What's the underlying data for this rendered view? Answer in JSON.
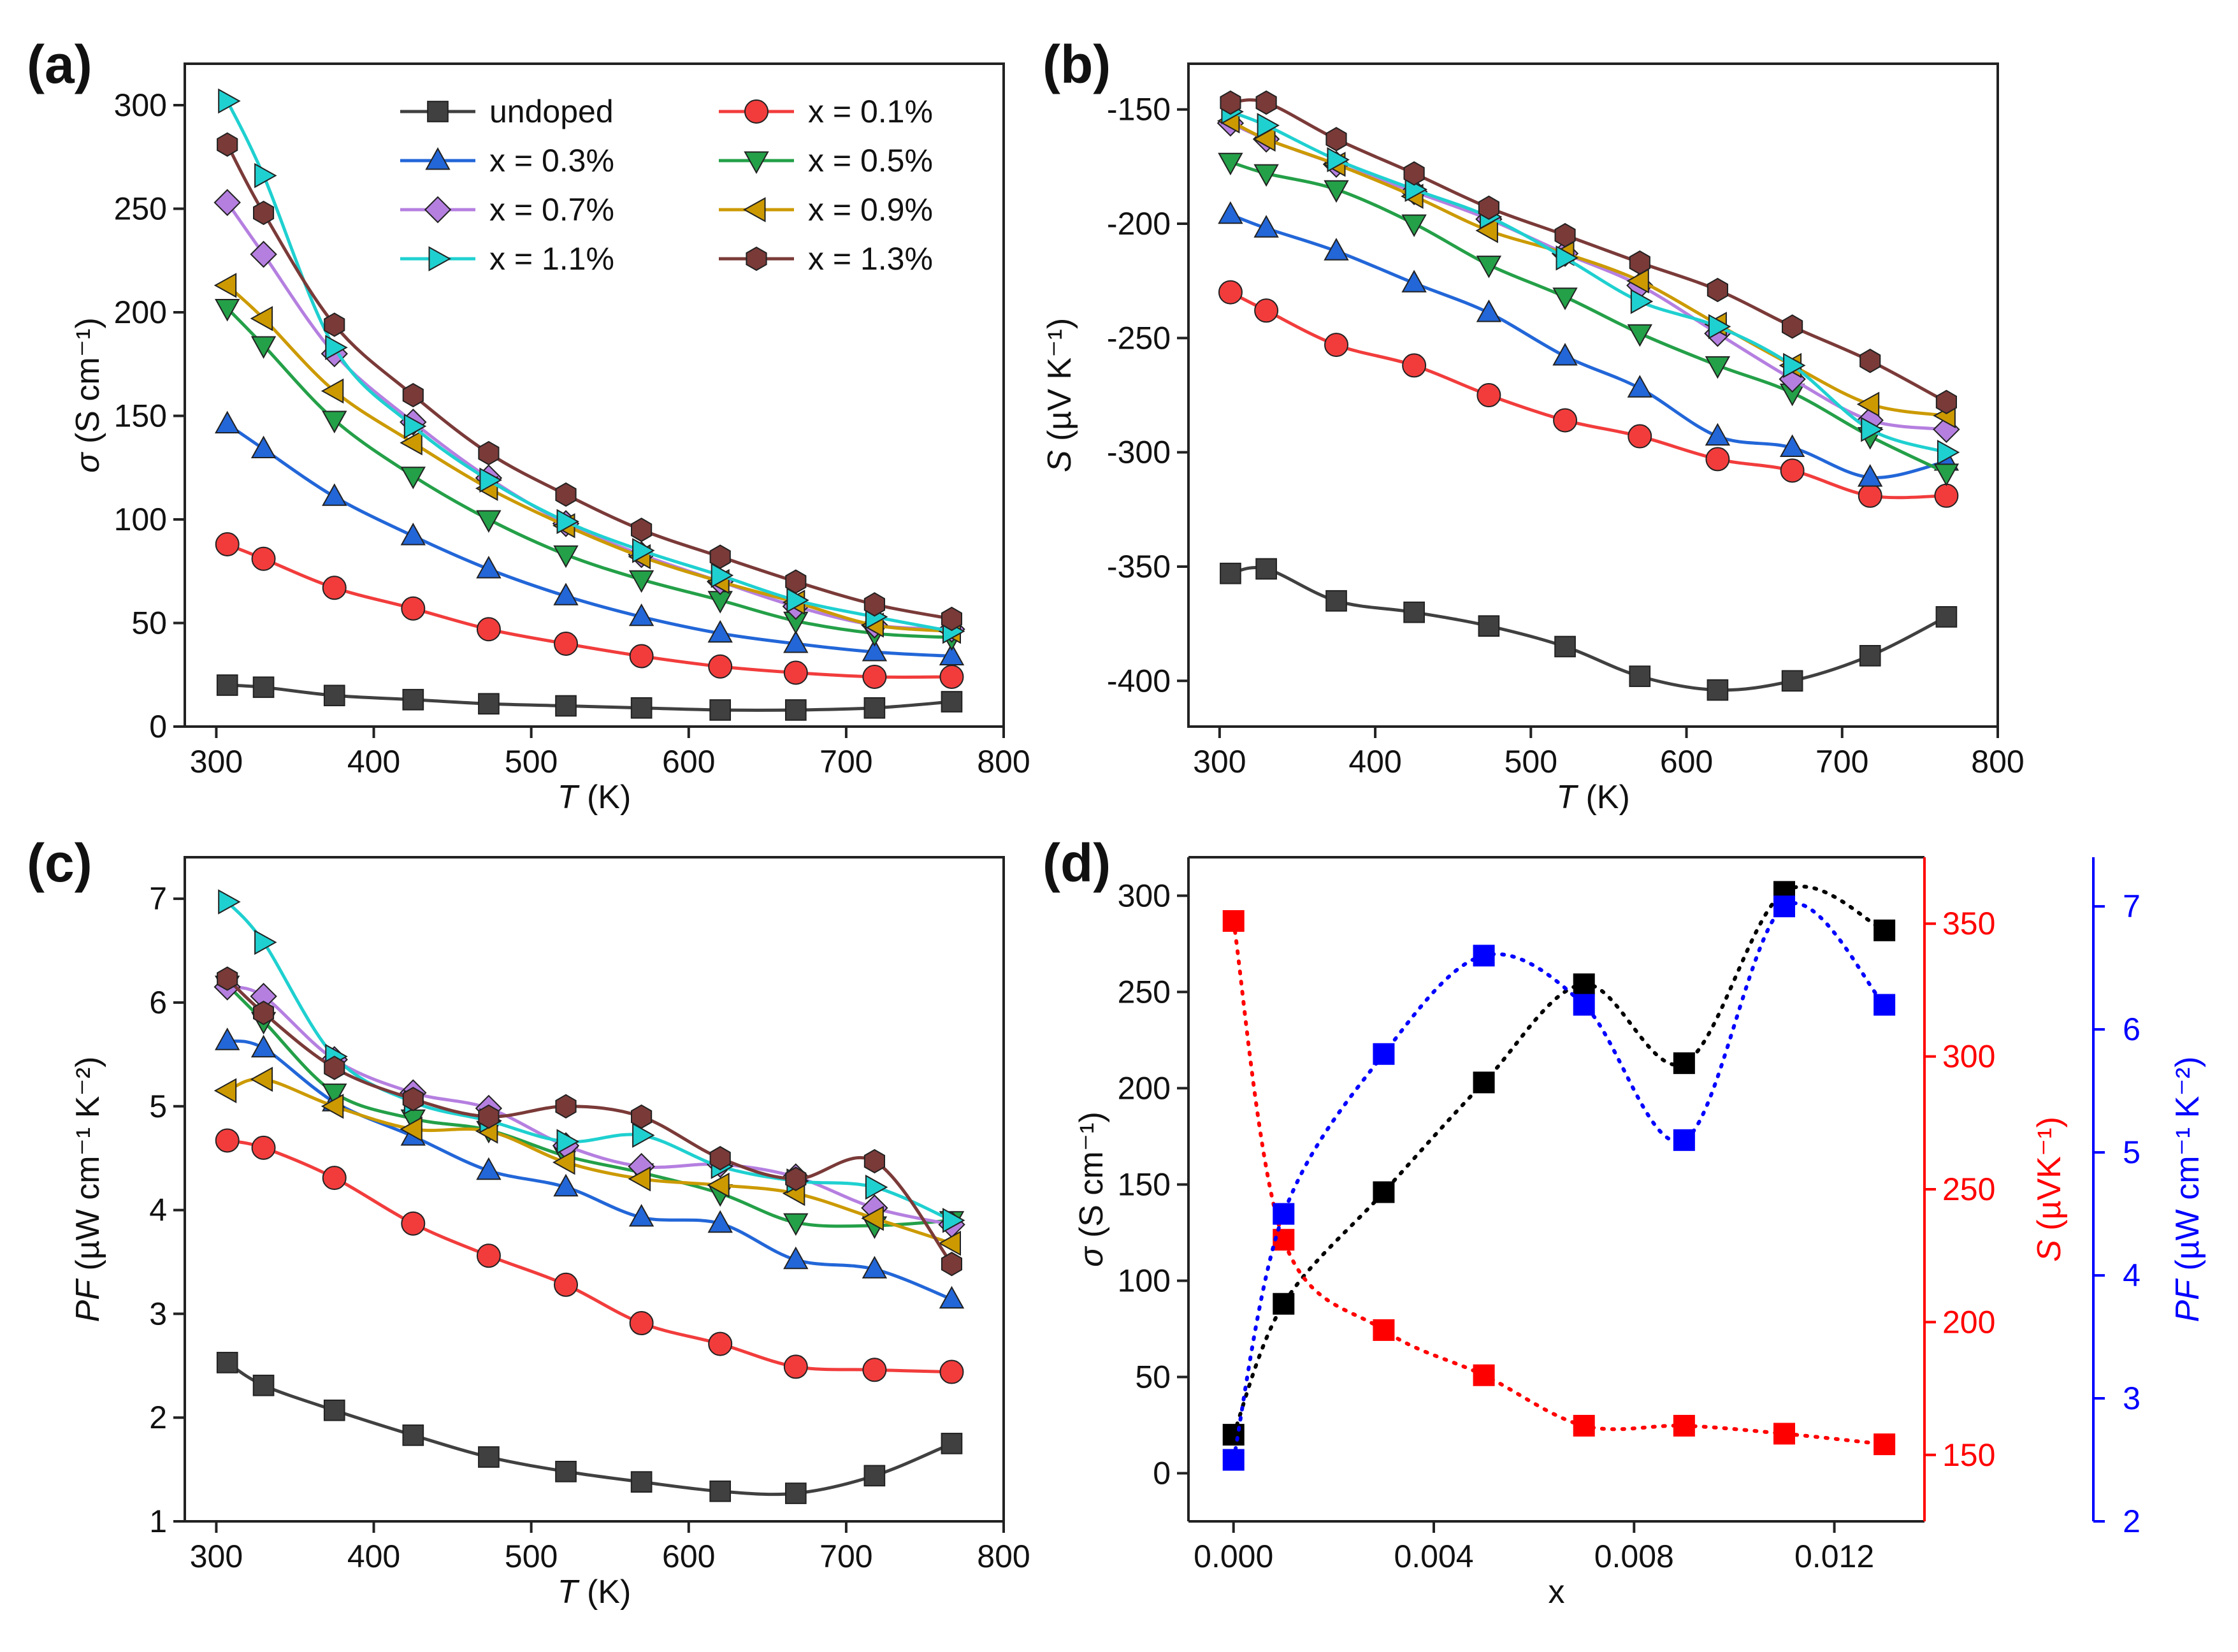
{
  "chart_data": [
    {
      "panel": "(a)",
      "type": "line",
      "xlabel_italic": "T",
      "xlabel_rest": " (K)",
      "ylabel_italic": "σ",
      "ylabel_rest": " (S cm⁻¹)",
      "xlim": [
        280,
        800
      ],
      "ylim": [
        0,
        320
      ],
      "xticks": [
        300,
        400,
        500,
        600,
        700,
        800
      ],
      "yticks": [
        0,
        50,
        100,
        150,
        200,
        250,
        300
      ],
      "x": [
        307,
        330,
        375,
        425,
        473,
        522,
        570,
        620,
        668,
        718,
        767
      ],
      "series": [
        {
          "name": "undoped",
          "color": "#404040",
          "marker": "square",
          "values": [
            20,
            19,
            15,
            13,
            11,
            10,
            9,
            8,
            8,
            9,
            12
          ]
        },
        {
          "name": "x = 0.1%",
          "color": "#f23c3c",
          "marker": "circle",
          "values": [
            88,
            81,
            67,
            57,
            47,
            40,
            34,
            29,
            26,
            24,
            24
          ]
        },
        {
          "name": "x = 0.3%",
          "color": "#2266d8",
          "marker": "triangle-up",
          "values": [
            146,
            134,
            111,
            92,
            76,
            63,
            53,
            45,
            40,
            36,
            34
          ]
        },
        {
          "name": "x = 0.5%",
          "color": "#24a048",
          "marker": "triangle-down",
          "values": [
            202,
            184,
            148,
            121,
            100,
            83,
            71,
            61,
            51,
            45,
            43
          ]
        },
        {
          "name": "x = 0.7%",
          "color": "#b57fe0",
          "marker": "diamond",
          "values": [
            253,
            228,
            180,
            147,
            120,
            98,
            83,
            70,
            58,
            49,
            47
          ]
        },
        {
          "name": "x = 0.9%",
          "color": "#cc9a00",
          "marker": "triangle-left",
          "values": [
            213,
            197,
            162,
            137,
            115,
            97,
            82,
            70,
            60,
            49,
            46
          ]
        },
        {
          "name": "x = 1.1%",
          "color": "#1fd0d0",
          "marker": "triangle-right",
          "values": [
            302,
            266,
            183,
            145,
            119,
            99,
            85,
            73,
            61,
            53,
            46
          ]
        },
        {
          "name": "x = 1.3%",
          "color": "#7a3a38",
          "marker": "hexagon",
          "values": [
            281,
            248,
            194,
            160,
            132,
            112,
            95,
            82,
            70,
            59,
            52
          ]
        }
      ]
    },
    {
      "panel": "(b)",
      "type": "line",
      "xlabel_italic": "T",
      "xlabel_rest": " (K)",
      "ylabel_italic": "S",
      "ylabel_rest": " (µV K⁻¹)",
      "xlim": [
        280,
        800
      ],
      "ylim": [
        -420,
        -130
      ],
      "xticks": [
        300,
        400,
        500,
        600,
        700,
        800
      ],
      "yticks": [
        -400,
        -350,
        -300,
        -250,
        -200,
        -150
      ],
      "x": [
        307,
        330,
        375,
        425,
        473,
        522,
        570,
        620,
        668,
        718,
        767
      ],
      "series": [
        {
          "name": "undoped",
          "values": [
            -353,
            -351,
            -365,
            -370,
            -376,
            -385,
            -398,
            -404,
            -400,
            -389,
            -372
          ]
        },
        {
          "name": "x = 0.1%",
          "values": [
            -230,
            -238,
            -253,
            -262,
            -275,
            -286,
            -293,
            -303,
            -308,
            -319,
            -319
          ]
        },
        {
          "name": "x = 0.3%",
          "values": [
            -196,
            -202,
            -212,
            -226,
            -239,
            -258,
            -272,
            -293,
            -298,
            -311,
            -304
          ]
        },
        {
          "name": "x = 0.5%",
          "values": [
            -173,
            -178,
            -185,
            -200,
            -218,
            -232,
            -248,
            -262,
            -274,
            -293,
            -309
          ]
        },
        {
          "name": "x = 0.7%",
          "values": [
            -156,
            -163,
            -174,
            -186,
            -198,
            -213,
            -227,
            -248,
            -268,
            -286,
            -290
          ]
        },
        {
          "name": "x = 0.9%",
          "values": [
            -155,
            -163,
            -174,
            -188,
            -203,
            -213,
            -225,
            -244,
            -262,
            -279,
            -284
          ]
        },
        {
          "name": "x = 1.1%",
          "values": [
            -151,
            -157,
            -172,
            -185,
            -197,
            -215,
            -234,
            -245,
            -262,
            -290,
            -300
          ]
        },
        {
          "name": "x = 1.3%",
          "values": [
            -147,
            -147,
            -163,
            -178,
            -193,
            -205,
            -217,
            -229,
            -245,
            -260,
            -278
          ]
        }
      ]
    },
    {
      "panel": "(c)",
      "type": "line",
      "xlabel_italic": "T",
      "xlabel_rest": " (K)",
      "ylabel_italic": "PF",
      "ylabel_rest": " (µW cm⁻¹ K⁻²)",
      "xlim": [
        280,
        800
      ],
      "ylim": [
        1,
        7.4
      ],
      "xticks": [
        300,
        400,
        500,
        600,
        700,
        800
      ],
      "yticks": [
        1,
        2,
        3,
        4,
        5,
        6,
        7
      ],
      "x": [
        307,
        330,
        375,
        425,
        473,
        522,
        570,
        620,
        668,
        718,
        767
      ],
      "series": [
        {
          "name": "undoped",
          "values": [
            2.53,
            2.31,
            2.07,
            1.83,
            1.62,
            1.48,
            1.38,
            1.29,
            1.27,
            1.44,
            1.75
          ]
        },
        {
          "name": "x = 0.1%",
          "values": [
            4.67,
            4.6,
            4.31,
            3.87,
            3.56,
            3.28,
            2.91,
            2.71,
            2.49,
            2.46,
            2.44
          ]
        },
        {
          "name": "x = 0.3%",
          "values": [
            5.63,
            5.56,
            5.04,
            4.71,
            4.38,
            4.22,
            3.93,
            3.87,
            3.52,
            3.43,
            3.14
          ]
        },
        {
          "name": "x = 0.5%",
          "values": [
            6.17,
            5.82,
            5.13,
            4.88,
            4.77,
            4.52,
            4.36,
            4.16,
            3.88,
            3.85,
            3.9
          ]
        },
        {
          "name": "x = 0.7%",
          "values": [
            6.15,
            6.06,
            5.45,
            5.13,
            4.98,
            4.62,
            4.42,
            4.44,
            4.32,
            4.02,
            3.86
          ]
        },
        {
          "name": "x = 0.9%",
          "values": [
            5.15,
            5.26,
            5.0,
            4.78,
            4.76,
            4.46,
            4.3,
            4.24,
            4.16,
            3.92,
            3.68
          ]
        },
        {
          "name": "x = 1.1%",
          "values": [
            6.97,
            6.58,
            5.48,
            5.04,
            4.86,
            4.66,
            4.72,
            4.42,
            4.28,
            4.22,
            3.9
          ]
        },
        {
          "name": "x = 1.3%",
          "values": [
            6.23,
            5.9,
            5.37,
            5.07,
            4.9,
            5.0,
            4.9,
            4.5,
            4.3,
            4.47,
            3.48
          ]
        }
      ]
    },
    {
      "panel": "(d)",
      "type": "scatter",
      "xlabel": "x",
      "xlim": [
        -0.0009,
        0.0138
      ],
      "xticks": [
        0.0,
        0.004,
        0.008,
        0.012
      ],
      "xtick_labels": [
        "0.000",
        "0.004",
        "0.008",
        "0.012"
      ],
      "x": [
        0,
        0.001,
        0.003,
        0.005,
        0.007,
        0.009,
        0.011,
        0.013
      ],
      "left_axis": {
        "label_italic": "σ",
        "label_rest": " (S cm⁻¹)",
        "ylim": [
          -25,
          320
        ],
        "yticks": [
          0,
          50,
          100,
          150,
          200,
          250,
          300
        ],
        "color": "#000000"
      },
      "right_axis_1": {
        "label_italic": "S",
        "label_rest": " (µVK⁻¹)",
        "ylim": [
          125,
          375
        ],
        "yticks": [
          150,
          200,
          250,
          300,
          350
        ],
        "color": "#ff0000"
      },
      "right_axis_2": {
        "label_italic": "PF",
        "label_rest": " (µW cm⁻¹ K⁻²)",
        "ylim": [
          2,
          7.4
        ],
        "yticks": [
          2,
          3,
          4,
          5,
          6,
          7
        ],
        "color": "#0000ff"
      },
      "series": [
        {
          "name": "σ",
          "axis": "left",
          "color": "#000000",
          "values": [
            20,
            88,
            146,
            203,
            254,
            213,
            302,
            282
          ]
        },
        {
          "name": "S",
          "axis": "right_1",
          "color": "#ff0000",
          "values": [
            351,
            231,
            197,
            180,
            161,
            161,
            158,
            154
          ]
        },
        {
          "name": "PF",
          "axis": "right_2",
          "color": "#0000ff",
          "values": [
            2.5,
            4.5,
            5.8,
            6.6,
            6.2,
            5.1,
            7.0,
            6.2
          ]
        }
      ]
    }
  ]
}
